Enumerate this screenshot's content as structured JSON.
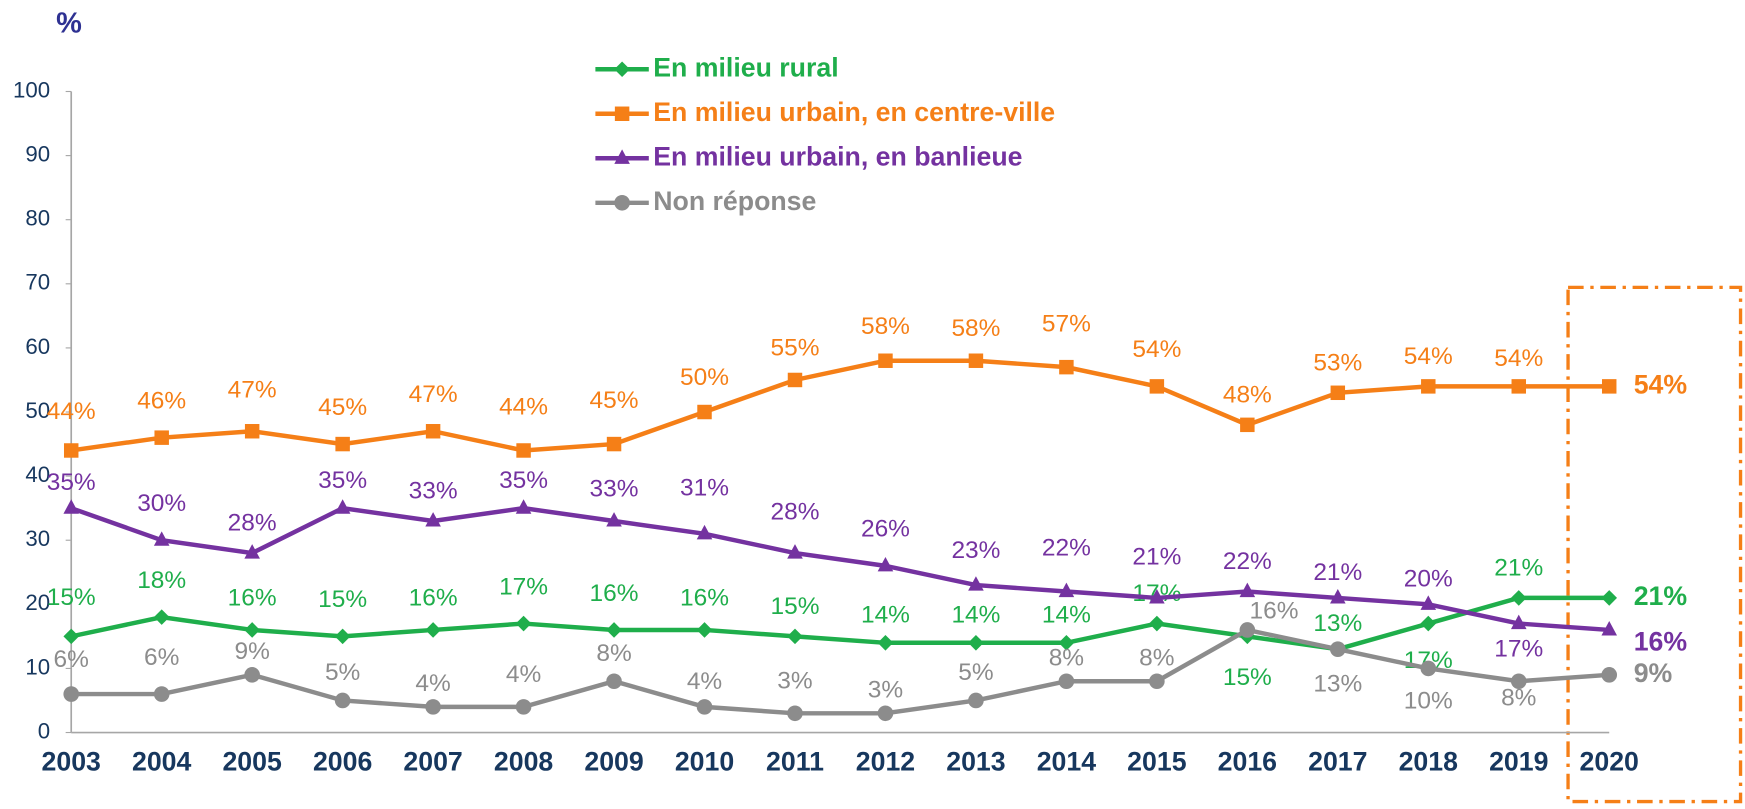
{
  "chart_data": {
    "type": "line",
    "y_label": "%",
    "categories": [
      "2003",
      "2004",
      "2005",
      "2006",
      "2007",
      "2008",
      "2009",
      "2010",
      "2011",
      "2012",
      "2013",
      "2014",
      "2015",
      "2016",
      "2017",
      "2018",
      "2019",
      "2020"
    ],
    "ylim": [
      0,
      100
    ],
    "yticks": [
      0,
      10,
      20,
      30,
      40,
      50,
      60,
      70,
      80,
      90,
      100
    ],
    "series": [
      {
        "name": "En milieu rural",
        "color": "#1fae4b",
        "marker": "diamond",
        "values": [
          15,
          18,
          16,
          15,
          16,
          17,
          16,
          16,
          15,
          14,
          14,
          14,
          17,
          15,
          13,
          17,
          21,
          21
        ],
        "value_labels": [
          "15%",
          "18%",
          "16%",
          "15%",
          "16%",
          "17%",
          "16%",
          "16%",
          "15%",
          "14%",
          "14%",
          "14%",
          "17%",
          "15%",
          "13%",
          "17%",
          "21%",
          "21%"
        ]
      },
      {
        "name": "En milieu urbain, en centre-ville",
        "color": "#f57f17",
        "marker": "square",
        "values": [
          44,
          46,
          47,
          45,
          47,
          44,
          45,
          50,
          55,
          58,
          58,
          57,
          54,
          48,
          53,
          54,
          54,
          54
        ],
        "value_labels": [
          "44%",
          "46%",
          "47%",
          "45%",
          "47%",
          "44%",
          "45%",
          "50%",
          "55%",
          "58%",
          "58%",
          "57%",
          "54%",
          "48%",
          "53%",
          "54%",
          "54%",
          "54%"
        ]
      },
      {
        "name": "En milieu urbain, en banlieue",
        "color": "#7432a0",
        "marker": "triangle",
        "values": [
          35,
          30,
          28,
          35,
          33,
          35,
          33,
          31,
          28,
          26,
          23,
          22,
          21,
          22,
          21,
          20,
          17,
          16
        ],
        "value_labels": [
          "35%",
          "30%",
          "28%",
          "35%",
          "33%",
          "35%",
          "33%",
          "31%",
          "28%",
          "26%",
          "23%",
          "22%",
          "21%",
          "22%",
          "21%",
          "20%",
          "17%",
          "16%"
        ]
      },
      {
        "name": "Non réponse",
        "color": "#8c8c8c",
        "marker": "circle",
        "values": [
          6,
          6,
          9,
          5,
          4,
          4,
          8,
          4,
          3,
          3,
          5,
          8,
          8,
          16,
          13,
          10,
          8,
          9
        ],
        "value_labels": [
          "6%",
          "6%",
          "9%",
          "5%",
          "4%",
          "4%",
          "8%",
          "4%",
          "3%",
          "3%",
          "5%",
          "8%",
          "8%",
          "16%",
          "13%",
          "10%",
          "8%",
          "9%"
        ]
      }
    ]
  }
}
